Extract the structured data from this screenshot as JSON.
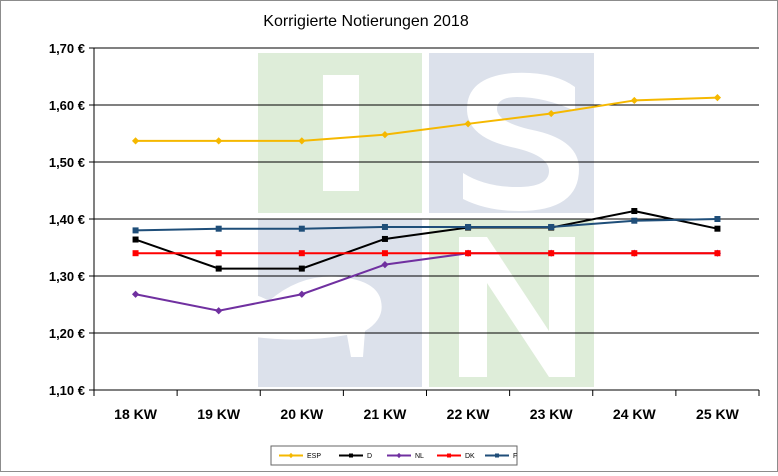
{
  "chart_data": {
    "type": "line",
    "title": "Korrigierte Notierungen 2018",
    "xlabel": "",
    "ylabel": "",
    "categories": [
      "18 KW",
      "19 KW",
      "20 KW",
      "21 KW",
      "22 KW",
      "23 KW",
      "24 KW",
      "25 KW"
    ],
    "y_ticks": [
      "1,10 €",
      "1,20 €",
      "1,30 €",
      "1,40 €",
      "1,50 €",
      "1,60 €",
      "1,70 €"
    ],
    "ylim": [
      1.1,
      1.7
    ],
    "grid": true,
    "legend_position": "bottom",
    "series": [
      {
        "name": "ESP",
        "color": "#f5b800",
        "marker": "diamond",
        "values": [
          1.537,
          1.537,
          1.537,
          1.548,
          1.567,
          1.585,
          1.608,
          1.613
        ]
      },
      {
        "name": "D",
        "color": "#000000",
        "marker": "square",
        "values": [
          1.364,
          1.313,
          1.313,
          1.365,
          1.385,
          1.385,
          1.414,
          1.383
        ]
      },
      {
        "name": "NL",
        "color": "#7030a0",
        "marker": "diamond",
        "values": [
          1.268,
          1.239,
          1.268,
          1.32,
          1.34,
          1.34,
          1.34,
          1.34
        ]
      },
      {
        "name": "DK",
        "color": "#ff0000",
        "marker": "square",
        "values": [
          1.34,
          1.34,
          1.34,
          1.34,
          1.34,
          1.34,
          1.34,
          1.34
        ]
      },
      {
        "name": "F",
        "color": "#1f4e79",
        "marker": "square",
        "values": [
          1.38,
          1.383,
          1.383,
          1.386,
          1.386,
          1.386,
          1.397,
          1.4
        ]
      }
    ],
    "watermark": "ISN"
  }
}
